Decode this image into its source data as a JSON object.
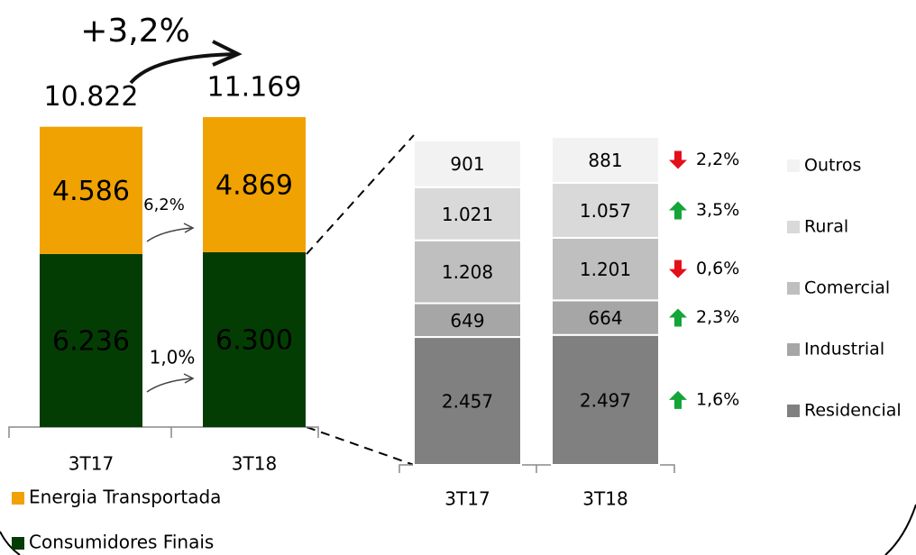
{
  "chart_data": [
    {
      "type": "bar",
      "stacked": true,
      "categories": [
        "3T17",
        "3T18"
      ],
      "series": [
        {
          "name": "Consumidores Finais",
          "color": "#033d03",
          "label_color": "#ffffff",
          "values": [
            6236,
            6300
          ],
          "value_labels": [
            "6.236",
            "6.300"
          ]
        },
        {
          "name": "Energia Transportada",
          "color": "#f0a202",
          "label_color": "#000000",
          "values": [
            4586,
            4869
          ],
          "value_labels": [
            "4.586",
            "4.869"
          ]
        }
      ],
      "totals": {
        "values": [
          10822,
          11169
        ],
        "value_labels": [
          "10.822",
          "11.169"
        ]
      },
      "annotations": [
        "+3,2%",
        "6,2%",
        "1,0%"
      ]
    },
    {
      "type": "bar",
      "stacked": true,
      "categories": [
        "3T17",
        "3T18"
      ],
      "series": [
        {
          "name": "Residencial",
          "color": "#808080",
          "values": [
            2457,
            2497
          ],
          "value_labels": [
            "2.457",
            "2.497"
          ]
        },
        {
          "name": "Industrial",
          "color": "#a6a6a6",
          "values": [
            649,
            664
          ],
          "value_labels": [
            "649",
            "664"
          ]
        },
        {
          "name": "Comercial",
          "color": "#bfbfbf",
          "values": [
            1208,
            1201
          ],
          "value_labels": [
            "1.208",
            "1.201"
          ]
        },
        {
          "name": "Rural",
          "color": "#d9d9d9",
          "values": [
            1021,
            1057
          ],
          "value_labels": [
            "1.021",
            "1.057"
          ]
        },
        {
          "name": "Outros",
          "color": "#f2f2f2",
          "values": [
            901,
            881
          ],
          "value_labels": [
            "901",
            "881"
          ]
        }
      ],
      "changes": [
        {
          "label": "1,6%",
          "direction": "up"
        },
        {
          "label": "2,3%",
          "direction": "up"
        },
        {
          "label": "0,6%",
          "direction": "down"
        },
        {
          "label": "3,5%",
          "direction": "up"
        },
        {
          "label": "2,2%",
          "direction": "down"
        }
      ]
    }
  ]
}
